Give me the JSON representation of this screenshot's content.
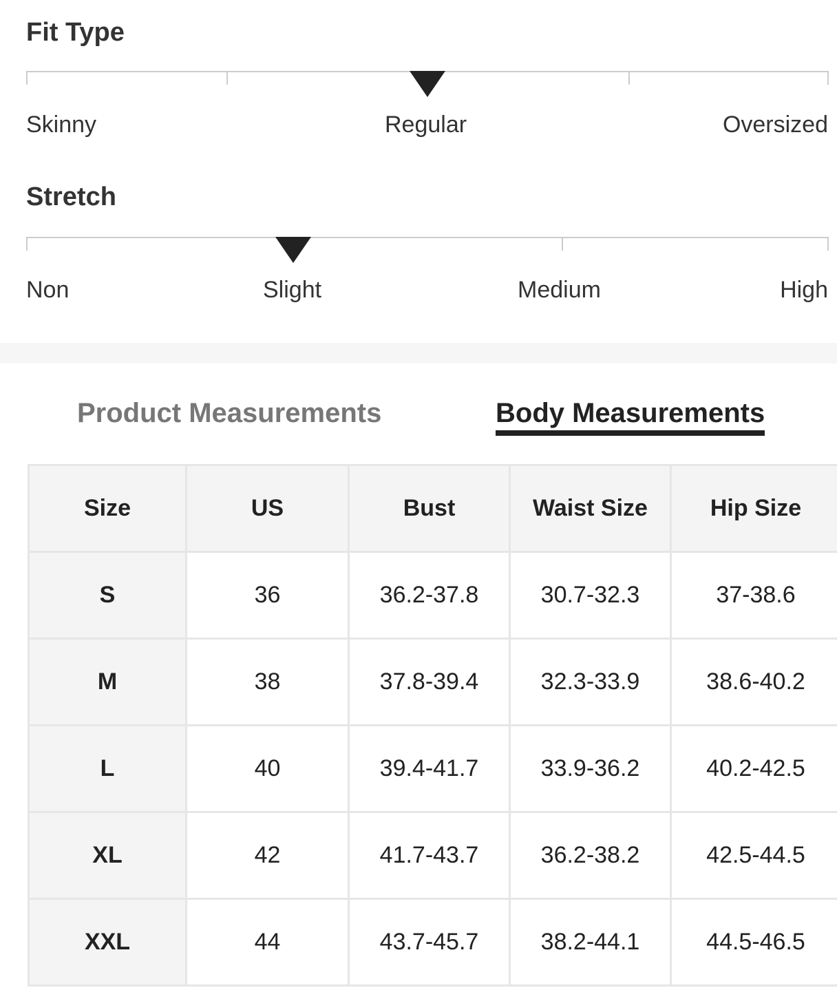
{
  "fit_type": {
    "title": "Fit Type",
    "labels": [
      "Skinny",
      "Regular",
      "Oversized"
    ],
    "selected": "Regular",
    "level": 0.5
  },
  "stretch": {
    "title": "Stretch",
    "labels": [
      "Non",
      "Slight",
      "Medium",
      "High"
    ],
    "selected": "Slight",
    "level": 0.333
  },
  "tabs": [
    {
      "label": "Product Measurements",
      "active": false
    },
    {
      "label": "Body Measurements",
      "active": true
    }
  ],
  "table": {
    "headers": [
      "Size",
      "US",
      "Bust",
      "Waist Size",
      "Hip Size"
    ],
    "rows": [
      [
        "S",
        "36",
        "36.2-37.8",
        "30.7-32.3",
        "37-38.6"
      ],
      [
        "M",
        "38",
        "37.8-39.4",
        "32.3-33.9",
        "38.6-40.2"
      ],
      [
        "L",
        "40",
        "39.4-41.7",
        "33.9-36.2",
        "40.2-42.5"
      ],
      [
        "XL",
        "42",
        "41.7-43.7",
        "36.2-38.2",
        "42.5-44.5"
      ],
      [
        "XXL",
        "44",
        "43.7-45.7",
        "38.2-44.1",
        "44.5-46.5"
      ]
    ]
  }
}
